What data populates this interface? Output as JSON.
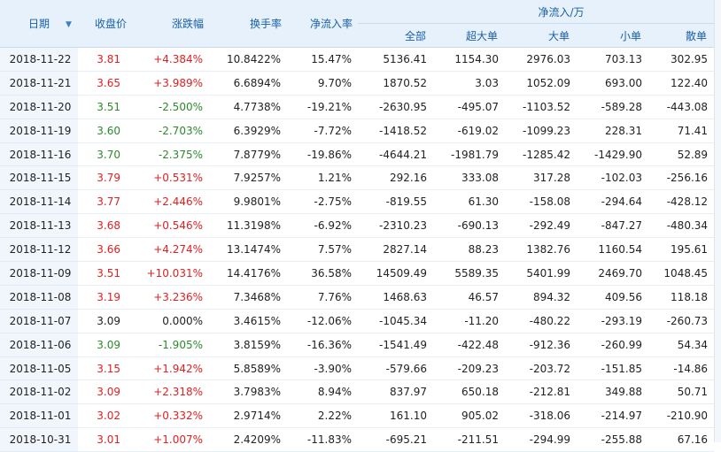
{
  "header": {
    "date": "日期",
    "close": "收盘价",
    "change": "涨跌幅",
    "turnover": "换手率",
    "net_rate": "净流入率",
    "net_group": "净流入/万",
    "sub": [
      "全部",
      "超大单",
      "大单",
      "小单",
      "散单"
    ],
    "sort_icon": "arrow-down-icon"
  },
  "rows": [
    {
      "date": "2018-11-22",
      "close": "3.81",
      "change": "+4.384%",
      "turnover": "10.8422%",
      "rate": "15.47%",
      "all": "5136.41",
      "xl": "1154.30",
      "l": "2976.03",
      "s": "703.13",
      "r": "302.95",
      "dir": "up"
    },
    {
      "date": "2018-11-21",
      "close": "3.65",
      "change": "+3.989%",
      "turnover": "6.6894%",
      "rate": "9.70%",
      "all": "1870.52",
      "xl": "3.03",
      "l": "1052.09",
      "s": "693.00",
      "r": "122.40",
      "dir": "up"
    },
    {
      "date": "2018-11-20",
      "close": "3.51",
      "change": "-2.500%",
      "turnover": "4.7738%",
      "rate": "-19.21%",
      "all": "-2630.95",
      "xl": "-495.07",
      "l": "-1103.52",
      "s": "-589.28",
      "r": "-443.08",
      "dir": "down"
    },
    {
      "date": "2018-11-19",
      "close": "3.60",
      "change": "-2.703%",
      "turnover": "6.3929%",
      "rate": "-7.72%",
      "all": "-1418.52",
      "xl": "-619.02",
      "l": "-1099.23",
      "s": "228.31",
      "r": "71.41",
      "dir": "down"
    },
    {
      "date": "2018-11-16",
      "close": "3.70",
      "change": "-2.375%",
      "turnover": "7.8779%",
      "rate": "-19.86%",
      "all": "-4644.21",
      "xl": "-1981.79",
      "l": "-1285.42",
      "s": "-1429.90",
      "r": "52.89",
      "dir": "down"
    },
    {
      "date": "2018-11-15",
      "close": "3.79",
      "change": "+0.531%",
      "turnover": "7.9257%",
      "rate": "1.21%",
      "all": "292.16",
      "xl": "333.08",
      "l": "317.28",
      "s": "-102.03",
      "r": "-256.16",
      "dir": "up"
    },
    {
      "date": "2018-11-14",
      "close": "3.77",
      "change": "+2.446%",
      "turnover": "9.9801%",
      "rate": "-2.75%",
      "all": "-819.55",
      "xl": "61.30",
      "l": "-158.08",
      "s": "-294.64",
      "r": "-428.12",
      "dir": "up"
    },
    {
      "date": "2018-11-13",
      "close": "3.68",
      "change": "+0.546%",
      "turnover": "11.3198%",
      "rate": "-6.92%",
      "all": "-2310.23",
      "xl": "-690.13",
      "l": "-292.49",
      "s": "-847.27",
      "r": "-480.34",
      "dir": "up"
    },
    {
      "date": "2018-11-12",
      "close": "3.66",
      "change": "+4.274%",
      "turnover": "13.1474%",
      "rate": "7.57%",
      "all": "2827.14",
      "xl": "88.23",
      "l": "1382.76",
      "s": "1160.54",
      "r": "195.61",
      "dir": "up"
    },
    {
      "date": "2018-11-09",
      "close": "3.51",
      "change": "+10.031%",
      "turnover": "14.4176%",
      "rate": "36.58%",
      "all": "14509.49",
      "xl": "5589.35",
      "l": "5401.99",
      "s": "2469.70",
      "r": "1048.45",
      "dir": "up"
    },
    {
      "date": "2018-11-08",
      "close": "3.19",
      "change": "+3.236%",
      "turnover": "7.3468%",
      "rate": "7.76%",
      "all": "1468.63",
      "xl": "46.57",
      "l": "894.32",
      "s": "409.56",
      "r": "118.18",
      "dir": "up"
    },
    {
      "date": "2018-11-07",
      "close": "3.09",
      "change": "0.000%",
      "turnover": "3.4615%",
      "rate": "-12.06%",
      "all": "-1045.34",
      "xl": "-11.20",
      "l": "-480.22",
      "s": "-293.19",
      "r": "-260.73",
      "dir": "flat"
    },
    {
      "date": "2018-11-06",
      "close": "3.09",
      "change": "-1.905%",
      "turnover": "3.8159%",
      "rate": "-16.36%",
      "all": "-1541.49",
      "xl": "-422.48",
      "l": "-912.36",
      "s": "-260.99",
      "r": "54.34",
      "dir": "down"
    },
    {
      "date": "2018-11-05",
      "close": "3.15",
      "change": "+1.942%",
      "turnover": "5.8589%",
      "rate": "-3.90%",
      "all": "-579.66",
      "xl": "-209.23",
      "l": "-203.72",
      "s": "-151.85",
      "r": "-14.86",
      "dir": "up"
    },
    {
      "date": "2018-11-02",
      "close": "3.09",
      "change": "+2.318%",
      "turnover": "3.7983%",
      "rate": "8.94%",
      "all": "837.97",
      "xl": "650.18",
      "l": "-212.81",
      "s": "349.88",
      "r": "50.71",
      "dir": "up"
    },
    {
      "date": "2018-11-01",
      "close": "3.02",
      "change": "+0.332%",
      "turnover": "2.9714%",
      "rate": "2.22%",
      "all": "161.10",
      "xl": "905.02",
      "l": "-318.06",
      "s": "-214.97",
      "r": "-210.90",
      "dir": "up"
    },
    {
      "date": "2018-10-31",
      "close": "3.01",
      "change": "+1.007%",
      "turnover": "2.4209%",
      "rate": "-11.83%",
      "all": "-695.21",
      "xl": "-211.51",
      "l": "-294.99",
      "s": "-255.88",
      "r": "67.16",
      "dir": "up"
    }
  ]
}
